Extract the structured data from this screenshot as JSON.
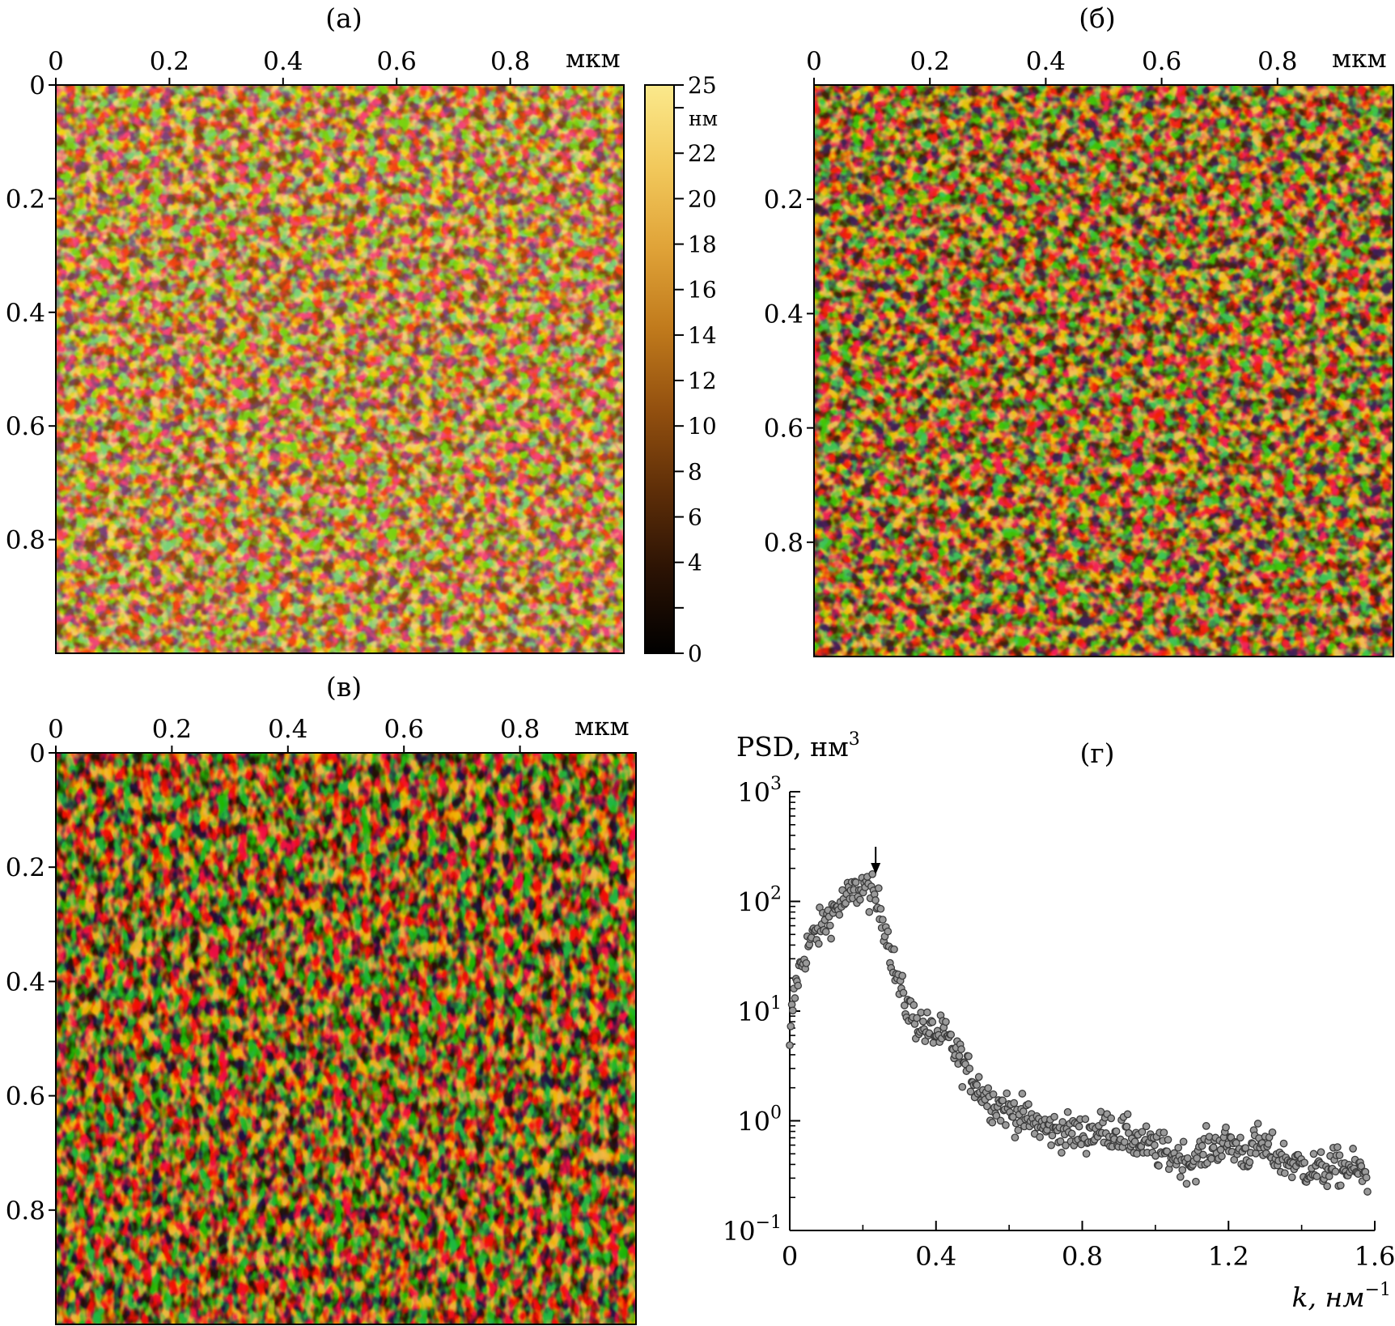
{
  "figure": {
    "colors": {
      "axis": "#000000",
      "marker_fill": "#9a9a9a",
      "marker_stroke": "#3a3a3a"
    }
  },
  "chart_data": [
    {
      "type": "heatmap",
      "panel_label": "(а)",
      "x_unit": "мкм",
      "x_ticks": [
        "0",
        "0.2",
        "0.4",
        "0.6",
        "0.8"
      ],
      "y_ticks": [
        "0",
        "0.2",
        "0.4",
        "0.6",
        "0.8"
      ],
      "x_range": [
        0,
        1
      ],
      "y_range": [
        0,
        1
      ],
      "colorbar": {
        "unit": "нм",
        "range": [
          0,
          25
        ],
        "tick_labels": [
          "25",
          "22",
          "20",
          "18",
          "16",
          "14",
          "12",
          "10",
          "8",
          "6",
          "4",
          "0"
        ],
        "tick_values": [
          25,
          22,
          20,
          18,
          16,
          14,
          12,
          10,
          8,
          6,
          4,
          0
        ],
        "minor_ticks": [
          24,
          2
        ],
        "colors": [
          "#000000",
          "#2a1204",
          "#5e2e08",
          "#93500f",
          "#c07a1c",
          "#e0a338",
          "#f2c95c",
          "#fbe98c"
        ]
      },
      "texture": {
        "base": "#e3a53a",
        "dark": "#7a4210",
        "light": "#f6d37a"
      }
    },
    {
      "type": "heatmap",
      "panel_label": "(б)",
      "x_unit": "мкм",
      "x_ticks": [
        "0",
        "0.2",
        "0.4",
        "0.6",
        "0.8"
      ],
      "y_ticks": [
        "0.2",
        "0.4",
        "0.6",
        "0.8"
      ],
      "x_range": [
        0,
        1
      ],
      "y_range": [
        0,
        1
      ],
      "texture": {
        "base": "#c88424",
        "dark": "#3e1e06",
        "light": "#f2c458"
      }
    },
    {
      "type": "heatmap",
      "panel_label": "(в)",
      "x_unit": "мкм",
      "x_ticks": [
        "0",
        "0.2",
        "0.4",
        "0.6",
        "0.8"
      ],
      "y_ticks": [
        "0",
        "0.2",
        "0.4",
        "0.6",
        "0.8"
      ],
      "x_range": [
        0,
        1
      ],
      "y_range": [
        0,
        1
      ],
      "texture": {
        "base": "#8a4a10",
        "dark": "#1e0d02",
        "light": "#f3b843"
      }
    },
    {
      "type": "scatter",
      "panel_label": "(г)",
      "ylabel_main": "PSD, нм",
      "ylabel_sup": "3",
      "xlabel_main": "k, нм",
      "xlabel_sup": "−1",
      "y_scale": "log",
      "x_range": [
        0,
        1.6
      ],
      "y_range": [
        0.1,
        1000
      ],
      "x_ticks": [
        "0",
        "0.4",
        "0.8",
        "1.2",
        "1.6"
      ],
      "y_ticks": [
        {
          "base": "10",
          "exp": "3"
        },
        {
          "base": "10",
          "exp": "2"
        },
        {
          "base": "10",
          "exp": "1"
        },
        {
          "base": "10",
          "exp": "0"
        },
        {
          "base": "10",
          "exp": "−1"
        }
      ],
      "peak_arrow_k": 0.235,
      "profile": [
        [
          0.0,
          4
        ],
        [
          0.005,
          9
        ],
        [
          0.02,
          20
        ],
        [
          0.05,
          40
        ],
        [
          0.08,
          55
        ],
        [
          0.11,
          75
        ],
        [
          0.14,
          95
        ],
        [
          0.17,
          115
        ],
        [
          0.2,
          140
        ],
        [
          0.225,
          115
        ],
        [
          0.25,
          80
        ],
        [
          0.27,
          45
        ],
        [
          0.29,
          22
        ],
        [
          0.31,
          13
        ],
        [
          0.34,
          8.5
        ],
        [
          0.38,
          6.5
        ],
        [
          0.42,
          6
        ],
        [
          0.45,
          4.5
        ],
        [
          0.48,
          3
        ],
        [
          0.52,
          2
        ],
        [
          0.55,
          1.5
        ],
        [
          0.6,
          1.25
        ],
        [
          0.7,
          0.85
        ],
        [
          0.8,
          0.75
        ],
        [
          0.87,
          0.85
        ],
        [
          0.95,
          0.65
        ],
        [
          1.0,
          0.55
        ],
        [
          1.05,
          0.48
        ],
        [
          1.1,
          0.42
        ],
        [
          1.15,
          0.58
        ],
        [
          1.2,
          0.62
        ],
        [
          1.25,
          0.5
        ],
        [
          1.28,
          0.62
        ],
        [
          1.32,
          0.5
        ],
        [
          1.38,
          0.4
        ],
        [
          1.45,
          0.35
        ],
        [
          1.5,
          0.38
        ],
        [
          1.55,
          0.36
        ],
        [
          1.58,
          0.3
        ]
      ],
      "n_points": 560,
      "scatter_sigma_log10": 0.085
    }
  ]
}
